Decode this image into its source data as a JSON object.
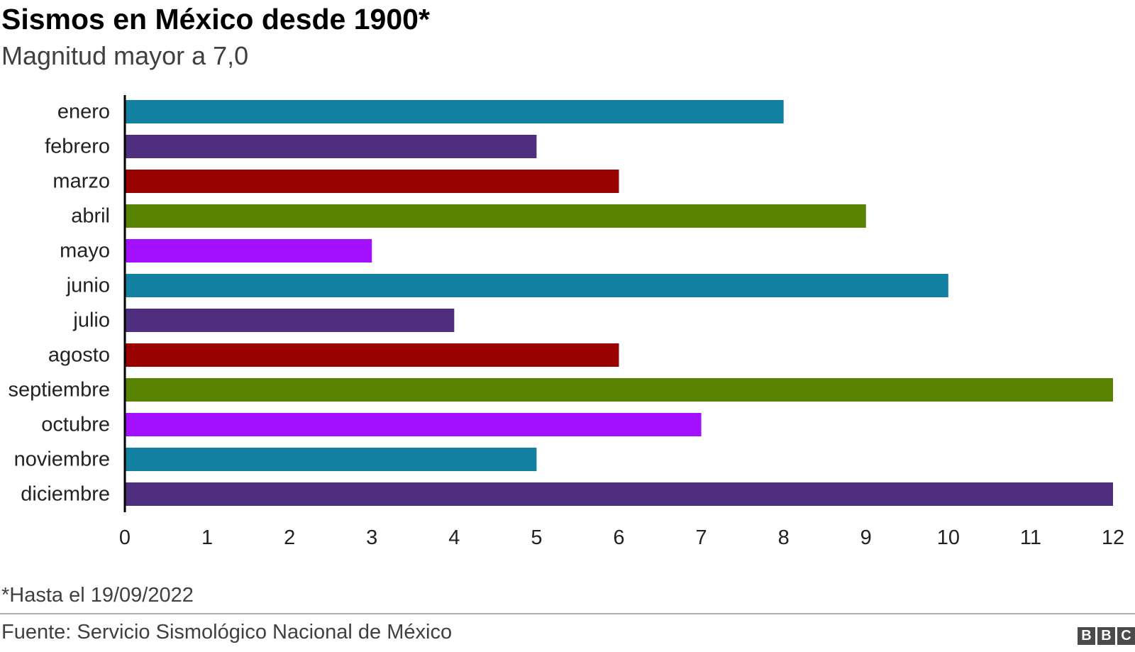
{
  "header": {
    "title": "Sismos en México desde 1900*",
    "subtitle": "Magnitud mayor a 7,0"
  },
  "footer": {
    "note": "*Hasta el 19/09/2022",
    "source": "Fuente: Servicio Sismológico Nacional de México",
    "logo_letters": [
      "B",
      "B",
      "C"
    ]
  },
  "chart_data": {
    "type": "bar",
    "orientation": "horizontal",
    "title": "Sismos en México desde 1900*",
    "subtitle": "Magnitud mayor a 7,0",
    "xlabel": "",
    "ylabel": "",
    "categories": [
      "enero",
      "febrero",
      "marzo",
      "abril",
      "mayo",
      "junio",
      "julio",
      "agosto",
      "septiembre",
      "octubre",
      "noviembre",
      "diciembre"
    ],
    "values": [
      8,
      5,
      6,
      9,
      3,
      10,
      4,
      6,
      12,
      7,
      5,
      12
    ],
    "colors": [
      "#1380A1",
      "#4F2D7F",
      "#990000",
      "#588300",
      "#A30FFF",
      "#1380A1",
      "#4F2D7F",
      "#990000",
      "#588300",
      "#A30FFF",
      "#1380A1",
      "#4F2D7F"
    ],
    "xlim": [
      0,
      12
    ],
    "xticks": [
      "0",
      "1",
      "2",
      "3",
      "4",
      "5",
      "6",
      "7",
      "8",
      "9",
      "10",
      "11",
      "12"
    ],
    "grid": false,
    "legend": "none"
  }
}
